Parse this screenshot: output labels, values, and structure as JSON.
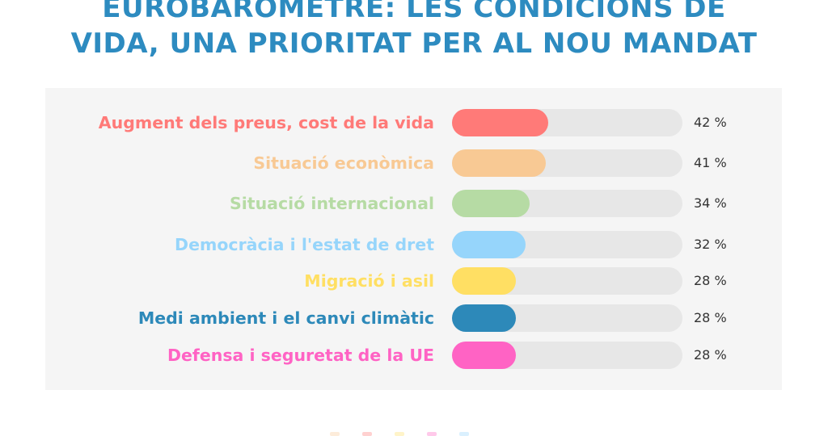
{
  "header": {
    "title_line1": "EUROBARÒMETRE: LES CONDICIONS DE",
    "title_line2": "VIDA, UNA PRIORITAT PER AL NOU MANDAT"
  },
  "chart_data": {
    "type": "bar",
    "orientation": "horizontal",
    "title": "EUROBARÒMETRE: LES CONDICIONS DE VIDA, UNA PRIORITAT PER AL NOU MANDAT",
    "unit": "%",
    "xlim": [
      0,
      100
    ],
    "grid": false,
    "categories": [
      "Augment dels preus, cost de la vida",
      "Situació econòmica",
      "Situació internacional",
      "Democràcia i l'estat de dret",
      "Migració i asil",
      "Medi ambient i el canvi climàtic",
      "Defensa i seguretat de la UE"
    ],
    "values": [
      42,
      41,
      34,
      32,
      28,
      28,
      28
    ],
    "value_labels": [
      "42 %",
      "41 %",
      "34 %",
      "32 %",
      "28 %",
      "28 %",
      "28 %"
    ],
    "colors": [
      "#ff7a78",
      "#f8c994",
      "#b6dba4",
      "#96d5fb",
      "#ffdf63",
      "#2d89b9",
      "#ff63c4"
    ]
  },
  "style": {
    "track_color": "#e7e7e7",
    "panel_color": "#f5f5f5",
    "title_color": "#2d8bc0"
  }
}
